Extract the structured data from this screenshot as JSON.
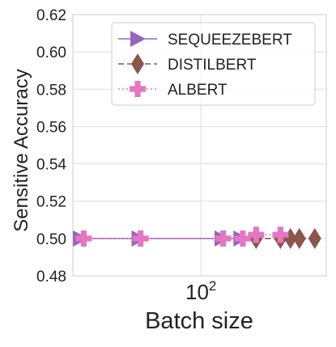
{
  "chart_data": {
    "type": "line",
    "xlabel": "Batch size",
    "ylabel": "Sensitive Accuracy",
    "xscale": "log",
    "xlim": [
      22,
      440
    ],
    "ylim": [
      0.48,
      0.62
    ],
    "yticks": [
      0.48,
      0.5,
      0.52,
      0.54,
      0.56,
      0.58,
      0.6,
      0.62
    ],
    "ytick_labels": [
      "0.48",
      "0.50",
      "0.52",
      "0.54",
      "0.56",
      "0.58",
      "0.60",
      "0.62"
    ],
    "xticks": [
      {
        "value": 100,
        "base": "10",
        "exponent": "2"
      }
    ],
    "grid": true,
    "legend": "top-right",
    "series": [
      {
        "name": "SEQUEEZEBERT",
        "color": "#9467bd",
        "marker": "triangle-right",
        "linestyle": "solid",
        "x": [
          24,
          48,
          128,
          160
        ],
        "y": [
          0.5,
          0.5,
          0.5,
          0.5
        ]
      },
      {
        "name": "DISTILBERT",
        "color": "#8c564b",
        "marker": "diamond",
        "linestyle": "dashed",
        "x": [
          192,
          256,
          288,
          320,
          384
        ],
        "y": [
          0.5,
          0.5,
          0.5,
          0.5,
          0.5
        ]
      },
      {
        "name": "ALBERT",
        "color": "#e377c2",
        "marker": "plus",
        "linestyle": "dotted",
        "x": [
          25,
          49,
          130,
          164,
          192,
          256
        ],
        "y": [
          0.5,
          0.5,
          0.5,
          0.5,
          0.502,
          0.502
        ]
      }
    ]
  }
}
